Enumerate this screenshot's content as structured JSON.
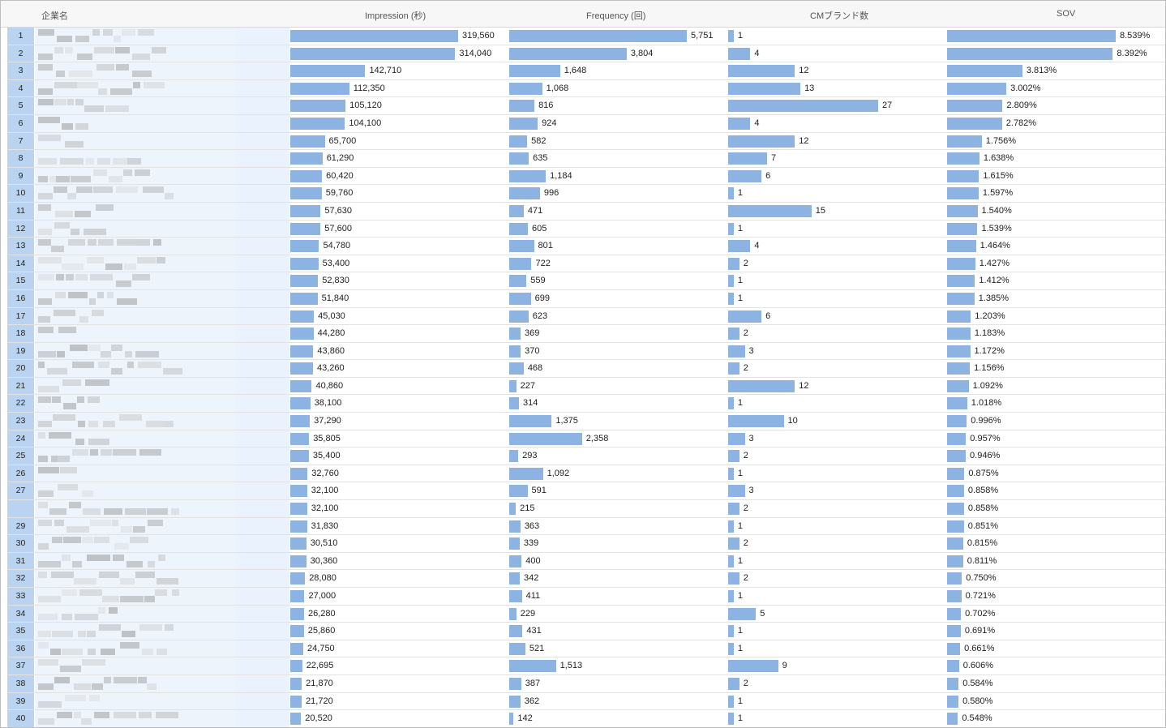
{
  "header": {
    "rank": "",
    "company": "企業名",
    "impression": "Impression (秒)",
    "frequency": "Frequency (回)",
    "cm_brands": "CMブランド数",
    "sov": "SOV"
  },
  "colors": {
    "bar": "#8db3e2",
    "index_bg": "#b9d3f0"
  },
  "rows": [
    {
      "rank": "1",
      "imp": 319560,
      "imp_l": "319,560",
      "freq": 5751,
      "freq_l": "5,751",
      "cm": 1,
      "sov": 8.539,
      "sov_l": "8.539%"
    },
    {
      "rank": "2",
      "imp": 314040,
      "imp_l": "314,040",
      "freq": 3804,
      "freq_l": "3,804",
      "cm": 4,
      "sov": 8.392,
      "sov_l": "8.392%"
    },
    {
      "rank": "3",
      "imp": 142710,
      "imp_l": "142,710",
      "freq": 1648,
      "freq_l": "1,648",
      "cm": 12,
      "sov": 3.813,
      "sov_l": "3.813%"
    },
    {
      "rank": "4",
      "imp": 112350,
      "imp_l": "112,350",
      "freq": 1068,
      "freq_l": "1,068",
      "cm": 13,
      "sov": 3.002,
      "sov_l": "3.002%"
    },
    {
      "rank": "5",
      "imp": 105120,
      "imp_l": "105,120",
      "freq": 816,
      "freq_l": "816",
      "cm": 27,
      "sov": 2.809,
      "sov_l": "2.809%"
    },
    {
      "rank": "6",
      "imp": 104100,
      "imp_l": "104,100",
      "freq": 924,
      "freq_l": "924",
      "cm": 4,
      "sov": 2.782,
      "sov_l": "2.782%"
    },
    {
      "rank": "7",
      "imp": 65700,
      "imp_l": "65,700",
      "freq": 582,
      "freq_l": "582",
      "cm": 12,
      "sov": 1.756,
      "sov_l": "1.756%"
    },
    {
      "rank": "8",
      "imp": 61290,
      "imp_l": "61,290",
      "freq": 635,
      "freq_l": "635",
      "cm": 7,
      "sov": 1.638,
      "sov_l": "1.638%"
    },
    {
      "rank": "9",
      "imp": 60420,
      "imp_l": "60,420",
      "freq": 1184,
      "freq_l": "1,184",
      "cm": 6,
      "sov": 1.615,
      "sov_l": "1.615%"
    },
    {
      "rank": "10",
      "imp": 59760,
      "imp_l": "59,760",
      "freq": 996,
      "freq_l": "996",
      "cm": 1,
      "sov": 1.597,
      "sov_l": "1.597%"
    },
    {
      "rank": "11",
      "imp": 57630,
      "imp_l": "57,630",
      "freq": 471,
      "freq_l": "471",
      "cm": 15,
      "sov": 1.54,
      "sov_l": "1.540%"
    },
    {
      "rank": "12",
      "imp": 57600,
      "imp_l": "57,600",
      "freq": 605,
      "freq_l": "605",
      "cm": 1,
      "sov": 1.539,
      "sov_l": "1.539%"
    },
    {
      "rank": "13",
      "imp": 54780,
      "imp_l": "54,780",
      "freq": 801,
      "freq_l": "801",
      "cm": 4,
      "sov": 1.464,
      "sov_l": "1.464%"
    },
    {
      "rank": "14",
      "imp": 53400,
      "imp_l": "53,400",
      "freq": 722,
      "freq_l": "722",
      "cm": 2,
      "sov": 1.427,
      "sov_l": "1.427%"
    },
    {
      "rank": "15",
      "imp": 52830,
      "imp_l": "52,830",
      "freq": 559,
      "freq_l": "559",
      "cm": 1,
      "sov": 1.412,
      "sov_l": "1.412%"
    },
    {
      "rank": "16",
      "imp": 51840,
      "imp_l": "51,840",
      "freq": 699,
      "freq_l": "699",
      "cm": 1,
      "sov": 1.385,
      "sov_l": "1.385%"
    },
    {
      "rank": "17",
      "imp": 45030,
      "imp_l": "45,030",
      "freq": 623,
      "freq_l": "623",
      "cm": 6,
      "sov": 1.203,
      "sov_l": "1.203%"
    },
    {
      "rank": "18",
      "imp": 44280,
      "imp_l": "44,280",
      "freq": 369,
      "freq_l": "369",
      "cm": 2,
      "sov": 1.183,
      "sov_l": "1.183%"
    },
    {
      "rank": "19",
      "imp": 43860,
      "imp_l": "43,860",
      "freq": 370,
      "freq_l": "370",
      "cm": 3,
      "sov": 1.172,
      "sov_l": "1.172%"
    },
    {
      "rank": "20",
      "imp": 43260,
      "imp_l": "43,260",
      "freq": 468,
      "freq_l": "468",
      "cm": 2,
      "sov": 1.156,
      "sov_l": "1.156%"
    },
    {
      "rank": "21",
      "imp": 40860,
      "imp_l": "40,860",
      "freq": 227,
      "freq_l": "227",
      "cm": 12,
      "sov": 1.092,
      "sov_l": "1.092%"
    },
    {
      "rank": "22",
      "imp": 38100,
      "imp_l": "38,100",
      "freq": 314,
      "freq_l": "314",
      "cm": 1,
      "sov": 1.018,
      "sov_l": "1.018%"
    },
    {
      "rank": "23",
      "imp": 37290,
      "imp_l": "37,290",
      "freq": 1375,
      "freq_l": "1,375",
      "cm": 10,
      "sov": 0.996,
      "sov_l": "0.996%"
    },
    {
      "rank": "24",
      "imp": 35805,
      "imp_l": "35,805",
      "freq": 2358,
      "freq_l": "2,358",
      "cm": 3,
      "sov": 0.957,
      "sov_l": "0.957%"
    },
    {
      "rank": "25",
      "imp": 35400,
      "imp_l": "35,400",
      "freq": 293,
      "freq_l": "293",
      "cm": 2,
      "sov": 0.946,
      "sov_l": "0.946%"
    },
    {
      "rank": "26",
      "imp": 32760,
      "imp_l": "32,760",
      "freq": 1092,
      "freq_l": "1,092",
      "cm": 1,
      "sov": 0.875,
      "sov_l": "0.875%"
    },
    {
      "rank": "27",
      "imp": 32100,
      "imp_l": "32,100",
      "freq": 591,
      "freq_l": "591",
      "cm": 3,
      "sov": 0.858,
      "sov_l": "0.858%"
    },
    {
      "rank": "",
      "imp": 32100,
      "imp_l": "32,100",
      "freq": 215,
      "freq_l": "215",
      "cm": 2,
      "sov": 0.858,
      "sov_l": "0.858%"
    },
    {
      "rank": "29",
      "imp": 31830,
      "imp_l": "31,830",
      "freq": 363,
      "freq_l": "363",
      "cm": 1,
      "sov": 0.851,
      "sov_l": "0.851%"
    },
    {
      "rank": "30",
      "imp": 30510,
      "imp_l": "30,510",
      "freq": 339,
      "freq_l": "339",
      "cm": 2,
      "sov": 0.815,
      "sov_l": "0.815%"
    },
    {
      "rank": "31",
      "imp": 30360,
      "imp_l": "30,360",
      "freq": 400,
      "freq_l": "400",
      "cm": 1,
      "sov": 0.811,
      "sov_l": "0.811%"
    },
    {
      "rank": "32",
      "imp": 28080,
      "imp_l": "28,080",
      "freq": 342,
      "freq_l": "342",
      "cm": 2,
      "sov": 0.75,
      "sov_l": "0.750%"
    },
    {
      "rank": "33",
      "imp": 27000,
      "imp_l": "27,000",
      "freq": 411,
      "freq_l": "411",
      "cm": 1,
      "sov": 0.721,
      "sov_l": "0.721%"
    },
    {
      "rank": "34",
      "imp": 26280,
      "imp_l": "26,280",
      "freq": 229,
      "freq_l": "229",
      "cm": 5,
      "sov": 0.702,
      "sov_l": "0.702%"
    },
    {
      "rank": "35",
      "imp": 25860,
      "imp_l": "25,860",
      "freq": 431,
      "freq_l": "431",
      "cm": 1,
      "sov": 0.691,
      "sov_l": "0.691%"
    },
    {
      "rank": "36",
      "imp": 24750,
      "imp_l": "24,750",
      "freq": 521,
      "freq_l": "521",
      "cm": 1,
      "sov": 0.661,
      "sov_l": "0.661%"
    },
    {
      "rank": "37",
      "imp": 22695,
      "imp_l": "22,695",
      "freq": 1513,
      "freq_l": "1,513",
      "cm": 9,
      "sov": 0.606,
      "sov_l": "0.606%"
    },
    {
      "rank": "38",
      "imp": 21870,
      "imp_l": "21,870",
      "freq": 387,
      "freq_l": "387",
      "cm": 2,
      "sov": 0.584,
      "sov_l": "0.584%"
    },
    {
      "rank": "39",
      "imp": 21720,
      "imp_l": "21,720",
      "freq": 362,
      "freq_l": "362",
      "cm": 1,
      "sov": 0.58,
      "sov_l": "0.580%"
    },
    {
      "rank": "40",
      "imp": 20520,
      "imp_l": "20,520",
      "freq": 142,
      "freq_l": "142",
      "cm": 1,
      "sov": 0.548,
      "sov_l": "0.548%"
    }
  ]
}
